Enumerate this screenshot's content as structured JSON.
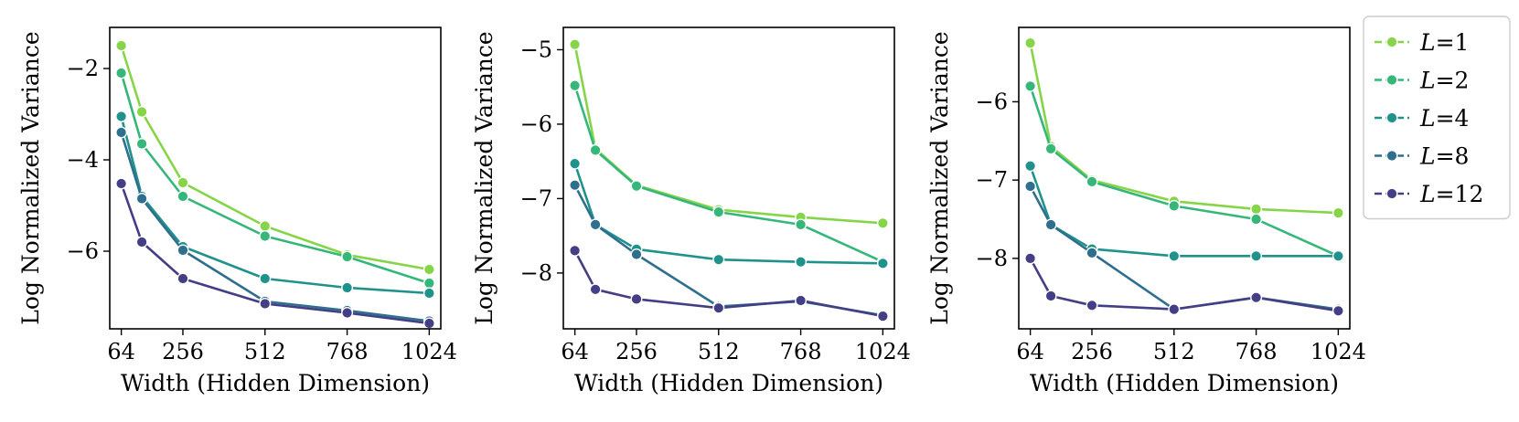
{
  "colors": {
    "L=1": "#86d549",
    "L=2": "#35b779",
    "L=4": "#20928c",
    "L=8": "#2e6f8e",
    "L=12": "#433e85"
  },
  "legend": {
    "location": "upper right, outside panels",
    "entries": [
      {
        "prefix": "L",
        "suffix": "=1"
      },
      {
        "prefix": "L",
        "suffix": "=2"
      },
      {
        "prefix": "L",
        "suffix": "=4"
      },
      {
        "prefix": "L",
        "suffix": "=8"
      },
      {
        "prefix": "L",
        "suffix": "=12"
      }
    ]
  },
  "chart_data": [
    {
      "type": "line",
      "xlabel": "Width (Hidden Dimension)",
      "ylabel": "Log Normalized Variance",
      "xticks": [
        64,
        256,
        512,
        768,
        1024
      ],
      "yticks": [
        -6,
        -4,
        -2
      ],
      "xlim": [
        28,
        1060
      ],
      "ylim": [
        -7.7,
        -1.1
      ],
      "x": [
        64,
        128,
        256,
        512,
        768,
        1024
      ],
      "series": [
        {
          "name": "L=1",
          "values": [
            -1.5,
            -2.95,
            -4.5,
            -5.45,
            -6.08,
            -6.4
          ]
        },
        {
          "name": "L=2",
          "values": [
            -2.1,
            -3.65,
            -4.8,
            -5.67,
            -6.12,
            -6.7
          ]
        },
        {
          "name": "L=4",
          "values": [
            -3.05,
            -4.8,
            -5.9,
            -6.6,
            -6.8,
            -6.92
          ]
        },
        {
          "name": "L=8",
          "values": [
            -3.4,
            -4.85,
            -5.98,
            -7.1,
            -7.3,
            -7.53
          ]
        },
        {
          "name": "L=12",
          "values": [
            -4.52,
            -5.8,
            -6.6,
            -7.15,
            -7.35,
            -7.58
          ]
        }
      ]
    },
    {
      "type": "line",
      "xlabel": "Width (Hidden Dimension)",
      "ylabel": "Log Normalized Variance",
      "xticks": [
        64,
        256,
        512,
        768,
        1024
      ],
      "yticks": [
        -8,
        -7,
        -6,
        -5
      ],
      "xlim": [
        28,
        1060
      ],
      "ylim": [
        -8.75,
        -4.7
      ],
      "x": [
        64,
        128,
        256,
        512,
        768,
        1024
      ],
      "series": [
        {
          "name": "L=1",
          "values": [
            -4.93,
            -6.33,
            -6.82,
            -7.15,
            -7.25,
            -7.33
          ]
        },
        {
          "name": "L=2",
          "values": [
            -5.48,
            -6.35,
            -6.83,
            -7.18,
            -7.35,
            -7.85
          ]
        },
        {
          "name": "L=4",
          "values": [
            -6.53,
            -7.35,
            -7.68,
            -7.82,
            -7.85,
            -7.87
          ]
        },
        {
          "name": "L=8",
          "values": [
            -6.82,
            -7.35,
            -7.75,
            -8.45,
            -8.38,
            -8.57
          ]
        },
        {
          "name": "L=12",
          "values": [
            -7.7,
            -8.22,
            -8.35,
            -8.47,
            -8.37,
            -8.58
          ]
        }
      ]
    },
    {
      "type": "line",
      "xlabel": "Width (Hidden Dimension)",
      "ylabel": "Log Normalized Variance",
      "xticks": [
        64,
        256,
        512,
        768,
        1024
      ],
      "yticks": [
        -8,
        -7,
        -6
      ],
      "xlim": [
        28,
        1060
      ],
      "ylim": [
        -8.9,
        -5.05
      ],
      "x": [
        64,
        128,
        256,
        512,
        768,
        1024
      ],
      "series": [
        {
          "name": "L=1",
          "values": [
            -5.25,
            -6.57,
            -7.0,
            -7.27,
            -7.37,
            -7.42
          ]
        },
        {
          "name": "L=2",
          "values": [
            -5.8,
            -6.6,
            -7.02,
            -7.33,
            -7.5,
            -7.97
          ]
        },
        {
          "name": "L=4",
          "values": [
            -6.82,
            -7.57,
            -7.88,
            -7.97,
            -7.97,
            -7.97
          ]
        },
        {
          "name": "L=8",
          "values": [
            -7.08,
            -7.57,
            -7.93,
            -8.65,
            -8.5,
            -8.65
          ]
        },
        {
          "name": "L=12",
          "values": [
            -8.0,
            -8.48,
            -8.6,
            -8.65,
            -8.5,
            -8.67
          ]
        }
      ]
    }
  ]
}
